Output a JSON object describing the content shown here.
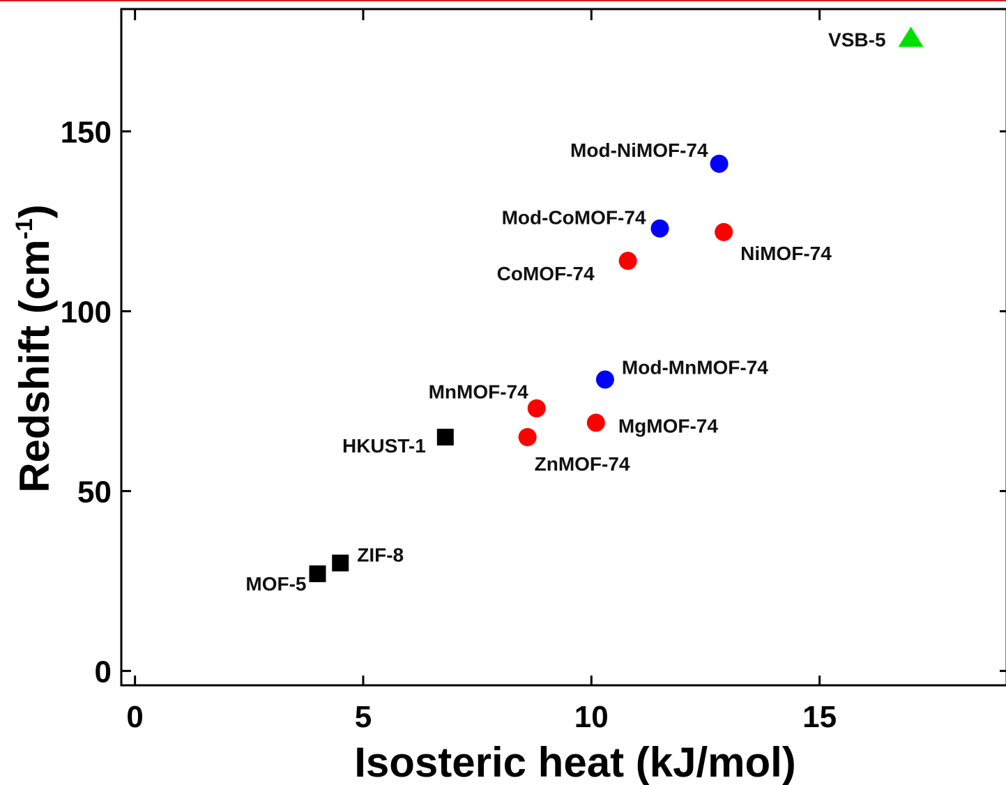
{
  "chart_data": {
    "type": "scatter",
    "title": "",
    "xlabel": "Isosteric heat (kJ/mol)",
    "ylabel_main": "Redshift (cm",
    "ylabel_sup": "-1",
    "ylabel_close": ")",
    "xlim": [
      -0.3,
      19.1
    ],
    "ylim": [
      -4,
      184
    ],
    "xticks": [
      0,
      5,
      10,
      15
    ],
    "yticks": [
      0,
      50,
      100,
      150
    ],
    "grid": false,
    "legend": "none",
    "colors": {
      "square": "#000000",
      "red": "#ff0000",
      "blue": "#0000ff",
      "green": "#00e000",
      "top_rule": "#d62020"
    },
    "points": [
      {
        "label": "MOF-5",
        "x": 4.0,
        "y": 27,
        "marker": "square",
        "color": "#000000",
        "anchor": "end",
        "dx": -16,
        "dy": 24
      },
      {
        "label": "ZIF-8",
        "x": 4.5,
        "y": 30,
        "marker": "square",
        "color": "#000000",
        "anchor": "start",
        "dx": 24,
        "dy": -2
      },
      {
        "label": "HKUST-1",
        "x": 6.8,
        "y": 65,
        "marker": "square",
        "color": "#000000",
        "anchor": "end",
        "dx": -28,
        "dy": 22
      },
      {
        "label": "ZnMOF-74",
        "x": 8.6,
        "y": 65,
        "marker": "circle",
        "color": "#ff0000",
        "anchor": "start",
        "dx": 10,
        "dy": 48
      },
      {
        "label": "MnMOF-74",
        "x": 8.8,
        "y": 73,
        "marker": "circle",
        "color": "#ff0000",
        "anchor": "end",
        "dx": -12,
        "dy": -14
      },
      {
        "label": "MgMOF-74",
        "x": 10.1,
        "y": 69,
        "marker": "circle",
        "color": "#ff0000",
        "anchor": "start",
        "dx": 32,
        "dy": 14
      },
      {
        "label": "Mod-MnMOF-74",
        "x": 10.3,
        "y": 81,
        "marker": "circle",
        "color": "#0000ff",
        "anchor": "start",
        "dx": 24,
        "dy": -8
      },
      {
        "label": "CoMOF-74",
        "x": 10.8,
        "y": 114,
        "marker": "circle",
        "color": "#ff0000",
        "anchor": "end",
        "dx": -48,
        "dy": 28
      },
      {
        "label": "Mod-CoMOF-74",
        "x": 11.5,
        "y": 123,
        "marker": "circle",
        "color": "#0000ff",
        "anchor": "end",
        "dx": -20,
        "dy": -6
      },
      {
        "label": "NiMOF-74",
        "x": 12.9,
        "y": 122,
        "marker": "circle",
        "color": "#ff0000",
        "anchor": "start",
        "dx": 24,
        "dy": 40
      },
      {
        "label": "Mod-NiMOF-74",
        "x": 12.8,
        "y": 141,
        "marker": "circle",
        "color": "#0000ff",
        "anchor": "end",
        "dx": -16,
        "dy": -10
      },
      {
        "label": "VSB-5",
        "x": 17.0,
        "y": 176,
        "marker": "triangle",
        "color": "#00e000",
        "anchor": "end",
        "dx": -36,
        "dy": 12
      }
    ]
  }
}
